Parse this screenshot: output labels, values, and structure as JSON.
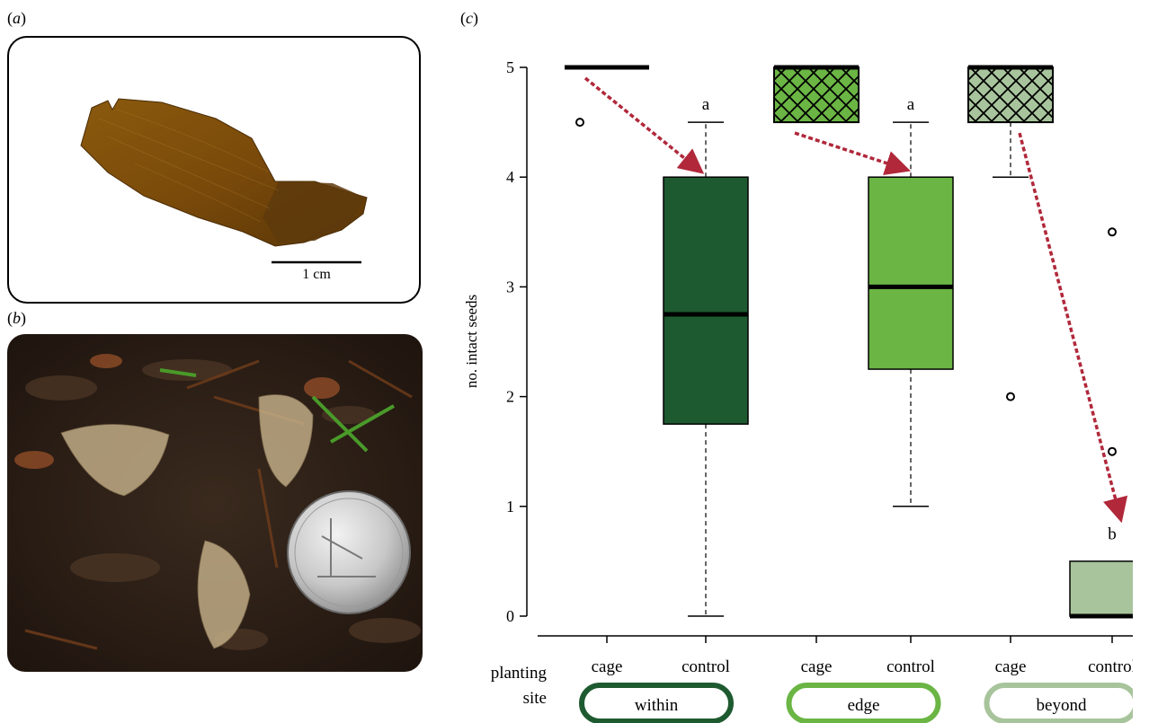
{
  "panels": {
    "a": {
      "label_open": "(",
      "label_letter": "a",
      "label_close": ")",
      "scale_bar": "1 cm"
    },
    "b": {
      "label_open": "(",
      "label_letter": "b",
      "label_close": ")"
    },
    "c": {
      "label_open": "(",
      "label_letter": "c",
      "label_close": ")"
    }
  },
  "chart_data": {
    "type": "box",
    "ylabel": "no. intact seeds",
    "ylim": [
      0,
      5
    ],
    "yticks": [
      0,
      1,
      2,
      3,
      4,
      5
    ],
    "row_label_line1": "planting",
    "row_label_line2": "site",
    "groups": [
      {
        "name": "within",
        "color": "#1e5a30",
        "light": "#1e5a30"
      },
      {
        "name": "edge",
        "color": "#6ab544",
        "light": "#6ab544"
      },
      {
        "name": "beyond",
        "color": "#a8c49c",
        "light": "#a8c49c"
      }
    ],
    "boxes": [
      {
        "group": "within",
        "treatment": "cage",
        "q1": 5,
        "median": 5,
        "q3": 5,
        "whisker_low": 5,
        "whisker_high": 5,
        "outliers": [
          4.5
        ],
        "letter": "",
        "hatched": false,
        "color": "#1e5a30"
      },
      {
        "group": "within",
        "treatment": "control",
        "q1": 1.75,
        "median": 2.75,
        "q3": 4,
        "whisker_low": 0,
        "whisker_high": 4.5,
        "outliers": [],
        "letter": "a",
        "hatched": false,
        "color": "#1e5a30"
      },
      {
        "group": "edge",
        "treatment": "cage",
        "q1": 4.5,
        "median": 5,
        "q3": 5,
        "whisker_low": 4.5,
        "whisker_high": 5,
        "outliers": [],
        "letter": "",
        "hatched": true,
        "color": "#6ab544"
      },
      {
        "group": "edge",
        "treatment": "control",
        "q1": 2.25,
        "median": 3,
        "q3": 4,
        "whisker_low": 1,
        "whisker_high": 4.5,
        "outliers": [],
        "letter": "a",
        "hatched": false,
        "color": "#6ab544"
      },
      {
        "group": "beyond",
        "treatment": "cage",
        "q1": 4.5,
        "median": 5,
        "q3": 5,
        "whisker_low": 4,
        "whisker_high": 5,
        "outliers": [
          2
        ],
        "letter": "",
        "hatched": true,
        "color": "#a8c49c"
      },
      {
        "group": "beyond",
        "treatment": "control",
        "q1": 0,
        "median": 0,
        "q3": 0.5,
        "whisker_low": 0,
        "whisker_high": 0.5,
        "outliers": [
          3.5,
          1.5
        ],
        "letter": "b",
        "hatched": false,
        "color": "#a8c49c"
      }
    ],
    "arrows": [
      {
        "from_box": 0,
        "from_value": 5,
        "to_box": 1,
        "to_value": 4
      },
      {
        "from_box": 2,
        "from_value": 4.5,
        "to_box": 3,
        "to_value": 4
      },
      {
        "from_box": 4,
        "from_value": 4.5,
        "to_box": 5,
        "to_value": 0.85
      }
    ],
    "arrow_color": "#b0283a"
  }
}
